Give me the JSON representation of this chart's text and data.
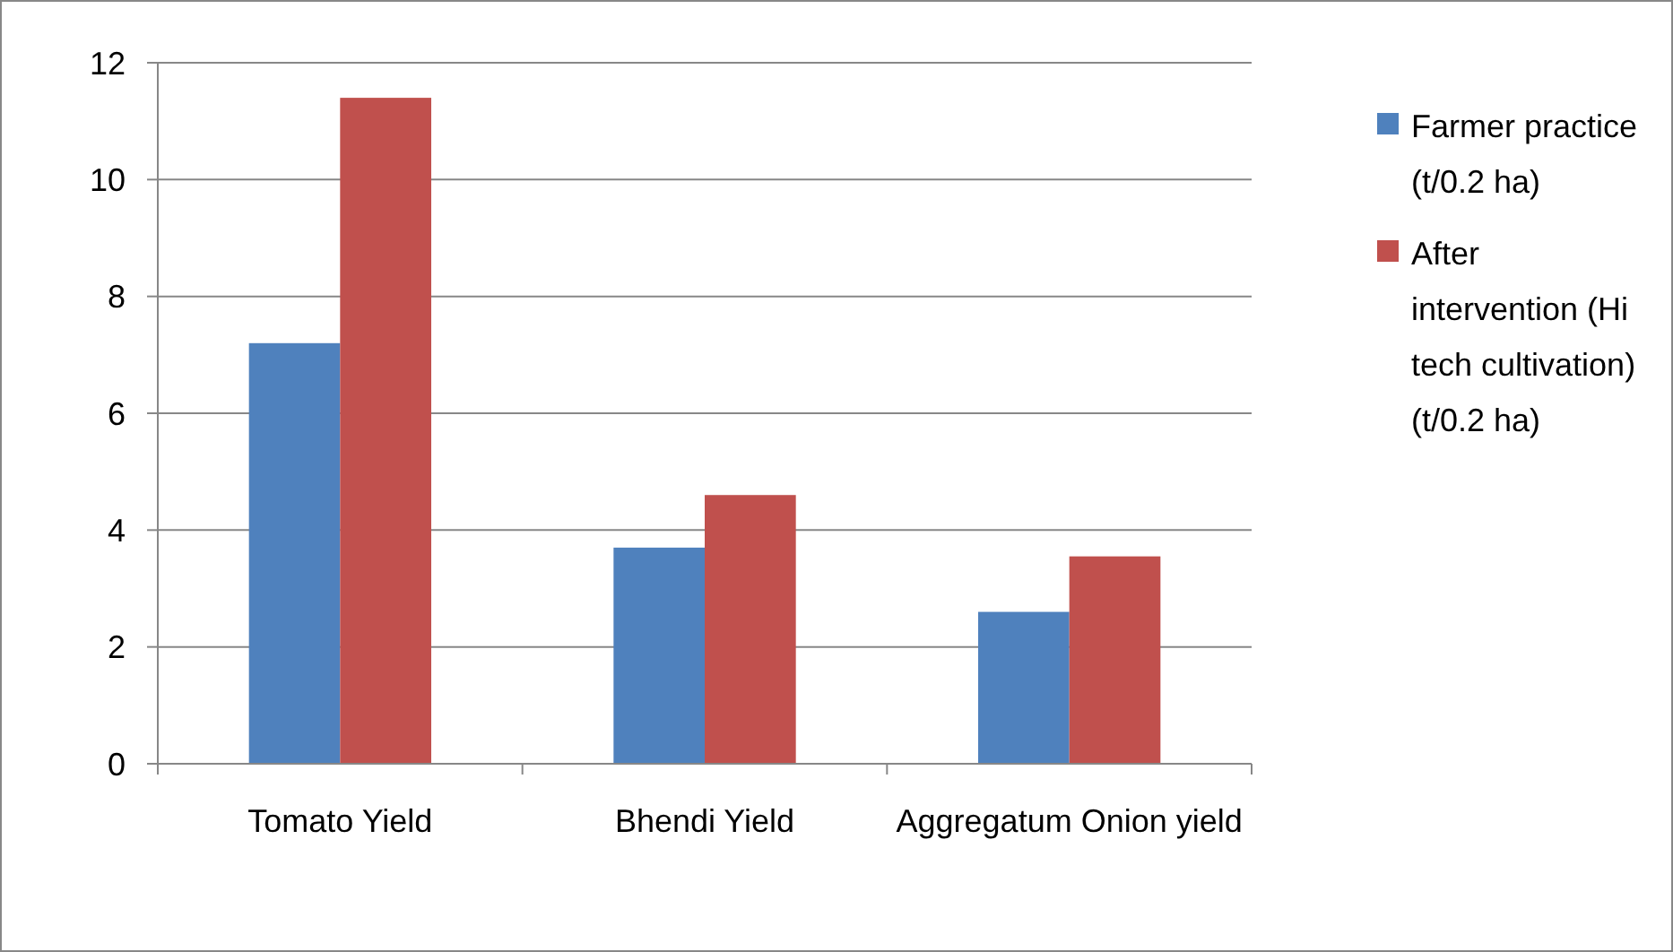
{
  "chart_data": {
    "type": "bar",
    "categories": [
      "Tomato Yield",
      "Bhendi Yield",
      "Aggregatum Onion yield"
    ],
    "series": [
      {
        "name": "Farmer practice (t/0.2 ha)",
        "color": "#4f81bd",
        "values": [
          7.2,
          3.7,
          2.6
        ]
      },
      {
        "name": "After intervention (Hi tech cultivation) (t/0.2 ha)",
        "color": "#c0504d",
        "values": [
          11.4,
          4.6,
          3.55
        ]
      }
    ],
    "ylim": [
      0,
      12
    ],
    "yticks": [
      0,
      2,
      4,
      6,
      8,
      10,
      12
    ],
    "grid": "y",
    "legend": "right"
  }
}
